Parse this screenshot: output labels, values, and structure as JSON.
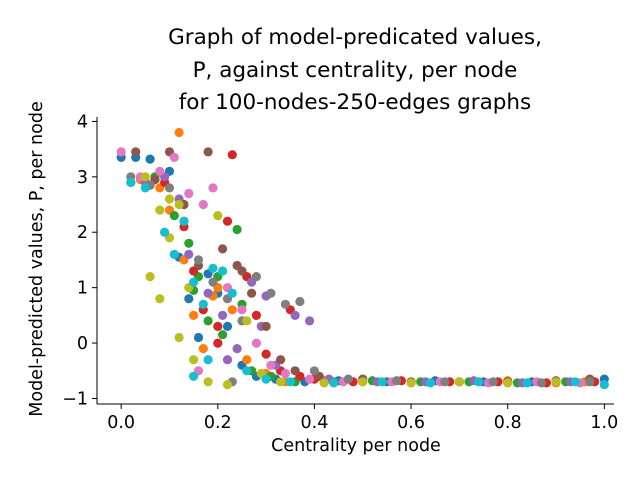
{
  "chart_data": {
    "type": "scatter",
    "title_lines": [
      "Graph of model-predicated values,",
      "P, against centrality, per node",
      "for 100-nodes-250-edges graphs"
    ],
    "xlabel": "Centrality per node",
    "ylabel": "Model-predicted values, P, per node",
    "xlim": [
      -0.05,
      1.02
    ],
    "ylim": [
      -1.1,
      4.08
    ],
    "xticks": [
      0.0,
      0.2,
      0.4,
      0.6,
      0.8,
      1.0
    ],
    "xtick_labels": [
      "0.0",
      "0.2",
      "0.4",
      "0.6",
      "0.8",
      "1.0"
    ],
    "yticks": [
      -1,
      0,
      1,
      2,
      3,
      4
    ],
    "ytick_labels": [
      "−1",
      "0",
      "1",
      "2",
      "3",
      "4"
    ],
    "grid": false,
    "legend": "none",
    "series": [
      {
        "color": "#1f77b4",
        "points": [
          [
            0.0,
            3.35
          ],
          [
            0.03,
            3.35
          ],
          [
            0.06,
            3.32
          ],
          [
            0.1,
            3.1
          ],
          [
            0.12,
            1.55
          ],
          [
            0.14,
            0.8
          ],
          [
            0.16,
            0.1
          ],
          [
            0.18,
            1.25
          ],
          [
            0.2,
            0.9
          ],
          [
            0.22,
            0.3
          ],
          [
            0.25,
            -0.4
          ],
          [
            0.28,
            -0.6
          ],
          [
            0.32,
            -0.65
          ],
          [
            0.38,
            -0.7
          ],
          [
            0.45,
            -0.68
          ],
          [
            0.55,
            -0.7
          ],
          [
            0.65,
            -0.68
          ],
          [
            0.75,
            -0.7
          ],
          [
            0.85,
            -0.7
          ],
          [
            1.0,
            -0.65
          ]
        ]
      },
      {
        "color": "#ff7f0e",
        "points": [
          [
            0.04,
            2.95
          ],
          [
            0.08,
            2.8
          ],
          [
            0.1,
            2.4
          ],
          [
            0.13,
            1.5
          ],
          [
            0.15,
            0.5
          ],
          [
            0.17,
            -0.1
          ],
          [
            0.2,
            1.0
          ],
          [
            0.23,
            0.6
          ],
          [
            0.26,
            -0.3
          ],
          [
            0.3,
            -0.55
          ],
          [
            0.34,
            -0.7
          ],
          [
            0.42,
            -0.68
          ],
          [
            0.5,
            -0.7
          ],
          [
            0.6,
            -0.72
          ],
          [
            0.7,
            -0.7
          ],
          [
            0.8,
            -0.68
          ],
          [
            0.9,
            -0.72
          ],
          [
            0.96,
            -0.7
          ],
          [
            0.12,
            3.8
          ],
          [
            0.19,
            0.85
          ]
        ]
      },
      {
        "color": "#2ca02c",
        "points": [
          [
            0.02,
            2.9
          ],
          [
            0.07,
            3.0
          ],
          [
            0.11,
            2.3
          ],
          [
            0.14,
            1.8
          ],
          [
            0.16,
            1.2
          ],
          [
            0.18,
            0.4
          ],
          [
            0.21,
            0.15
          ],
          [
            0.24,
            2.05
          ],
          [
            0.27,
            -0.5
          ],
          [
            0.31,
            -0.6
          ],
          [
            0.36,
            -0.7
          ],
          [
            0.44,
            -0.7
          ],
          [
            0.52,
            -0.68
          ],
          [
            0.62,
            -0.7
          ],
          [
            0.72,
            -0.7
          ],
          [
            0.82,
            -0.72
          ],
          [
            0.92,
            -0.7
          ],
          [
            0.15,
            0.95
          ],
          [
            0.2,
            1.2
          ],
          [
            0.25,
            0.7
          ]
        ]
      },
      {
        "color": "#d62728",
        "points": [
          [
            0.06,
            2.85
          ],
          [
            0.09,
            2.9
          ],
          [
            0.13,
            2.1
          ],
          [
            0.15,
            1.3
          ],
          [
            0.17,
            0.6
          ],
          [
            0.2,
            0.0
          ],
          [
            0.22,
            2.2
          ],
          [
            0.23,
            3.4
          ],
          [
            0.26,
            1.2
          ],
          [
            0.28,
            0.5
          ],
          [
            0.3,
            -0.2
          ],
          [
            0.33,
            -0.5
          ],
          [
            0.37,
            -0.6
          ],
          [
            0.4,
            -0.65
          ],
          [
            0.48,
            -0.7
          ],
          [
            0.58,
            -0.68
          ],
          [
            0.68,
            -0.7
          ],
          [
            0.78,
            -0.7
          ],
          [
            0.88,
            -0.72
          ],
          [
            0.98,
            -0.7
          ],
          [
            0.35,
            0.6
          ],
          [
            0.2,
            0.3
          ]
        ]
      },
      {
        "color": "#9467bd",
        "points": [
          [
            0.05,
            2.9
          ],
          [
            0.09,
            3.0
          ],
          [
            0.12,
            2.6
          ],
          [
            0.14,
            1.6
          ],
          [
            0.18,
            0.9
          ],
          [
            0.21,
            0.5
          ],
          [
            0.24,
            -0.1
          ],
          [
            0.27,
            1.1
          ],
          [
            0.29,
            0.3
          ],
          [
            0.32,
            -0.4
          ],
          [
            0.36,
            0.5
          ],
          [
            0.39,
            0.4
          ],
          [
            0.43,
            -0.65
          ],
          [
            0.53,
            -0.7
          ],
          [
            0.63,
            -0.7
          ],
          [
            0.73,
            -0.68
          ],
          [
            0.83,
            -0.72
          ],
          [
            0.93,
            -0.7
          ],
          [
            0.3,
            0.85
          ],
          [
            0.22,
            -0.3
          ]
        ]
      },
      {
        "color": "#8c564b",
        "points": [
          [
            0.03,
            3.45
          ],
          [
            0.07,
            2.95
          ],
          [
            0.1,
            3.45
          ],
          [
            0.13,
            2.5
          ],
          [
            0.16,
            1.4
          ],
          [
            0.18,
            3.45
          ],
          [
            0.21,
            1.7
          ],
          [
            0.24,
            1.4
          ],
          [
            0.27,
            0.9
          ],
          [
            0.3,
            0.3
          ],
          [
            0.33,
            -0.3
          ],
          [
            0.36,
            -0.5
          ],
          [
            0.41,
            -0.6
          ],
          [
            0.5,
            -0.65
          ],
          [
            0.6,
            -0.7
          ],
          [
            0.7,
            -0.7
          ],
          [
            0.8,
            -0.7
          ],
          [
            0.9,
            -0.68
          ],
          [
            0.97,
            -0.65
          ],
          [
            0.25,
            1.3
          ]
        ]
      },
      {
        "color": "#e377c2",
        "points": [
          [
            0.0,
            3.45
          ],
          [
            0.04,
            3.0
          ],
          [
            0.08,
            3.1
          ],
          [
            0.11,
            3.35
          ],
          [
            0.14,
            2.7
          ],
          [
            0.17,
            2.5
          ],
          [
            0.19,
            2.8
          ],
          [
            0.22,
            1.0
          ],
          [
            0.25,
            0.6
          ],
          [
            0.28,
            0.0
          ],
          [
            0.31,
            -0.4
          ],
          [
            0.34,
            -0.55
          ],
          [
            0.39,
            -0.65
          ],
          [
            0.46,
            -0.7
          ],
          [
            0.56,
            -0.7
          ],
          [
            0.66,
            -0.7
          ],
          [
            0.76,
            -0.72
          ],
          [
            0.86,
            -0.7
          ],
          [
            0.95,
            -0.72
          ],
          [
            0.16,
            -0.5
          ]
        ]
      },
      {
        "color": "#7f7f7f",
        "points": [
          [
            0.02,
            3.0
          ],
          [
            0.06,
            2.85
          ],
          [
            0.1,
            2.8
          ],
          [
            0.13,
            2.2
          ],
          [
            0.16,
            1.5
          ],
          [
            0.19,
            1.1
          ],
          [
            0.22,
            0.8
          ],
          [
            0.25,
            0.4
          ],
          [
            0.28,
            1.2
          ],
          [
            0.31,
            0.9
          ],
          [
            0.34,
            0.7
          ],
          [
            0.37,
            0.75
          ],
          [
            0.4,
            -0.5
          ],
          [
            0.47,
            -0.65
          ],
          [
            0.57,
            -0.68
          ],
          [
            0.67,
            -0.7
          ],
          [
            0.77,
            -0.7
          ],
          [
            0.87,
            -0.72
          ],
          [
            0.97,
            -0.7
          ],
          [
            0.23,
            -0.7
          ]
        ]
      },
      {
        "color": "#bcbd22",
        "points": [
          [
            0.05,
            3.0
          ],
          [
            0.08,
            2.4
          ],
          [
            0.1,
            2.6
          ],
          [
            0.12,
            2.5
          ],
          [
            0.06,
            1.2
          ],
          [
            0.08,
            0.8
          ],
          [
            0.12,
            0.1
          ],
          [
            0.15,
            -0.3
          ],
          [
            0.18,
            -0.7
          ],
          [
            0.2,
            2.3
          ],
          [
            0.22,
            -0.75
          ],
          [
            0.26,
            0.4
          ],
          [
            0.29,
            -0.55
          ],
          [
            0.33,
            -0.7
          ],
          [
            0.42,
            -0.72
          ],
          [
            0.5,
            -0.7
          ],
          [
            0.6,
            -0.72
          ],
          [
            0.7,
            -0.7
          ],
          [
            0.8,
            -0.72
          ],
          [
            0.9,
            -0.7
          ],
          [
            0.1,
            1.9
          ],
          [
            0.14,
            1.0
          ]
        ]
      },
      {
        "color": "#17becf",
        "points": [
          [
            0.02,
            2.9
          ],
          [
            0.05,
            2.8
          ],
          [
            0.09,
            2.0
          ],
          [
            0.11,
            1.6
          ],
          [
            0.13,
            2.2
          ],
          [
            0.15,
            1.1
          ],
          [
            0.17,
            0.7
          ],
          [
            0.19,
            1.35
          ],
          [
            0.21,
            1.3
          ],
          [
            0.23,
            0.9
          ],
          [
            0.15,
            -0.6
          ],
          [
            0.18,
            -0.3
          ],
          [
            0.26,
            -0.5
          ],
          [
            0.3,
            -0.65
          ],
          [
            0.35,
            -0.7
          ],
          [
            0.44,
            -0.72
          ],
          [
            0.54,
            -0.7
          ],
          [
            0.64,
            -0.72
          ],
          [
            0.74,
            -0.7
          ],
          [
            0.84,
            -0.72
          ],
          [
            0.94,
            -0.7
          ],
          [
            1.0,
            -0.75
          ]
        ]
      }
    ]
  }
}
